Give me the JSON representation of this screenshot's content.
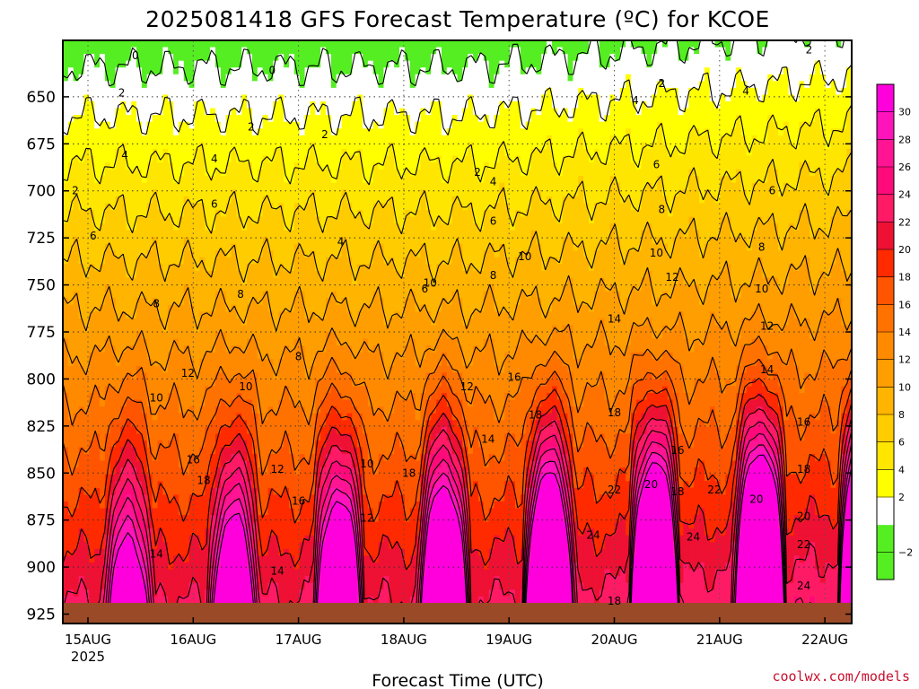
{
  "chart_data": {
    "type": "heatmap",
    "title": "2025081418 GFS Forecast Temperature (ºC) for KCOE",
    "xlabel": "Forecast Time (UTC)",
    "credit": "coolwx.com/models",
    "x_ticks": [
      {
        "label": "15AUG",
        "sublabel": "2025"
      },
      {
        "label": "16AUG",
        "sublabel": ""
      },
      {
        "label": "17AUG",
        "sublabel": ""
      },
      {
        "label": "18AUG",
        "sublabel": ""
      },
      {
        "label": "19AUG",
        "sublabel": ""
      },
      {
        "label": "20AUG",
        "sublabel": ""
      },
      {
        "label": "21AUG",
        "sublabel": ""
      },
      {
        "label": "22AUG",
        "sublabel": ""
      }
    ],
    "y_ticks": [
      "650",
      "675",
      "700",
      "725",
      "750",
      "775",
      "800",
      "825",
      "850",
      "875",
      "900",
      "925"
    ],
    "ylim": [
      930,
      620
    ],
    "grid": true,
    "colorbar": {
      "ticks": [
        "30",
        "28",
        "26",
        "24",
        "22",
        "20",
        "18",
        "16",
        "14",
        "12",
        "10",
        "8",
        "6",
        "4",
        "2",
        "−2"
      ],
      "levels": [
        {
          "min": -4,
          "max": 0,
          "color": "#55ee22"
        },
        {
          "min": 0,
          "max": 2,
          "color": "#ffffff"
        },
        {
          "min": 2,
          "max": 4,
          "color": "#ffff00"
        },
        {
          "min": 4,
          "max": 6,
          "color": "#ffe600"
        },
        {
          "min": 6,
          "max": 8,
          "color": "#ffcc00"
        },
        {
          "min": 8,
          "max": 10,
          "color": "#ffb400"
        },
        {
          "min": 10,
          "max": 12,
          "color": "#ff9e00"
        },
        {
          "min": 12,
          "max": 14,
          "color": "#ff8a00"
        },
        {
          "min": 14,
          "max": 16,
          "color": "#ff7200"
        },
        {
          "min": 16,
          "max": 18,
          "color": "#ff5500"
        },
        {
          "min": 18,
          "max": 20,
          "color": "#ff2a00"
        },
        {
          "min": 20,
          "max": 22,
          "color": "#ee1133"
        },
        {
          "min": 22,
          "max": 24,
          "color": "#ff1a66"
        },
        {
          "min": 24,
          "max": 26,
          "color": "#ff0a7a"
        },
        {
          "min": 26,
          "max": 28,
          "color": "#ff1493"
        },
        {
          "min": 28,
          "max": 30,
          "color": "#ff14bb"
        },
        {
          "min": 30,
          "max": 32,
          "color": "#ff00dd"
        }
      ]
    },
    "contour_labels": [
      {
        "text": "0",
        "day": 0.45,
        "p": 628
      },
      {
        "text": "0",
        "day": 1.75,
        "p": 636
      },
      {
        "text": "2",
        "day": 0.32,
        "p": 648
      },
      {
        "text": "2",
        "day": 1.55,
        "p": 666
      },
      {
        "text": "2",
        "day": 2.25,
        "p": 670
      },
      {
        "text": "2",
        "day": 3.7,
        "p": 690
      },
      {
        "text": "2",
        "day": 5.45,
        "p": 643
      },
      {
        "text": "2",
        "day": 6.85,
        "p": 625
      },
      {
        "text": "2",
        "day": -0.12,
        "p": 700
      },
      {
        "text": "4",
        "day": 0.35,
        "p": 681
      },
      {
        "text": "4",
        "day": 1.2,
        "p": 683
      },
      {
        "text": "4",
        "day": 2.4,
        "p": 727
      },
      {
        "text": "4",
        "day": 3.85,
        "p": 695
      },
      {
        "text": "4",
        "day": 5.2,
        "p": 652
      },
      {
        "text": "4",
        "day": 6.25,
        "p": 647
      },
      {
        "text": "6",
        "day": 0.05,
        "p": 724
      },
      {
        "text": "6",
        "day": 1.2,
        "p": 707
      },
      {
        "text": "6",
        "day": 3.2,
        "p": 752
      },
      {
        "text": "6",
        "day": 3.85,
        "p": 716
      },
      {
        "text": "6",
        "day": 5.4,
        "p": 686
      },
      {
        "text": "6",
        "day": 6.5,
        "p": 700
      },
      {
        "text": "8",
        "day": 0.65,
        "p": 760
      },
      {
        "text": "8",
        "day": 1.45,
        "p": 755
      },
      {
        "text": "8",
        "day": 2.0,
        "p": 788
      },
      {
        "text": "8",
        "day": 3.85,
        "p": 745
      },
      {
        "text": "8",
        "day": 5.45,
        "p": 710
      },
      {
        "text": "8",
        "day": 6.4,
        "p": 730
      },
      {
        "text": "10",
        "day": 0.65,
        "p": 810
      },
      {
        "text": "10",
        "day": 1.5,
        "p": 804
      },
      {
        "text": "10",
        "day": 2.65,
        "p": 845
      },
      {
        "text": "10",
        "day": 3.25,
        "p": 749
      },
      {
        "text": "10",
        "day": 4.15,
        "p": 735
      },
      {
        "text": "10",
        "day": 5.4,
        "p": 733
      },
      {
        "text": "10",
        "day": 6.4,
        "p": 752
      },
      {
        "text": "12",
        "day": 0.95,
        "p": 797
      },
      {
        "text": "12",
        "day": 1.8,
        "p": 848
      },
      {
        "text": "12",
        "day": 2.65,
        "p": 874
      },
      {
        "text": "12",
        "day": 3.6,
        "p": 804
      },
      {
        "text": "12",
        "day": 5.55,
        "p": 746
      },
      {
        "text": "12",
        "day": 6.45,
        "p": 772
      },
      {
        "text": "14",
        "day": 0.65,
        "p": 893
      },
      {
        "text": "14",
        "day": 1.8,
        "p": 902
      },
      {
        "text": "14",
        "day": 3.8,
        "p": 832
      },
      {
        "text": "14",
        "day": 5.0,
        "p": 768
      },
      {
        "text": "14",
        "day": 6.45,
        "p": 795
      },
      {
        "text": "16",
        "day": 1.0,
        "p": 843
      },
      {
        "text": "16",
        "day": 2.0,
        "p": 865
      },
      {
        "text": "16",
        "day": 4.05,
        "p": 799
      },
      {
        "text": "16",
        "day": 5.6,
        "p": 838
      },
      {
        "text": "16",
        "day": 6.8,
        "p": 823
      },
      {
        "text": "18",
        "day": 1.1,
        "p": 854
      },
      {
        "text": "18",
        "day": 3.05,
        "p": 850
      },
      {
        "text": "18",
        "day": 4.25,
        "p": 819
      },
      {
        "text": "18",
        "day": 5.0,
        "p": 818
      },
      {
        "text": "18",
        "day": 5.6,
        "p": 860
      },
      {
        "text": "18",
        "day": 6.8,
        "p": 848
      },
      {
        "text": "18",
        "day": 5.0,
        "p": 918
      },
      {
        "text": "20",
        "day": 5.35,
        "p": 856
      },
      {
        "text": "20",
        "day": 6.35,
        "p": 864
      },
      {
        "text": "20",
        "day": 6.8,
        "p": 873
      },
      {
        "text": "22",
        "day": 5.0,
        "p": 859
      },
      {
        "text": "22",
        "day": 5.95,
        "p": 859
      },
      {
        "text": "22",
        "day": 6.8,
        "p": 888
      },
      {
        "text": "24",
        "day": 4.8,
        "p": 883
      },
      {
        "text": "24",
        "day": 5.75,
        "p": 884
      },
      {
        "text": "24",
        "day": 6.8,
        "p": 910
      }
    ]
  }
}
